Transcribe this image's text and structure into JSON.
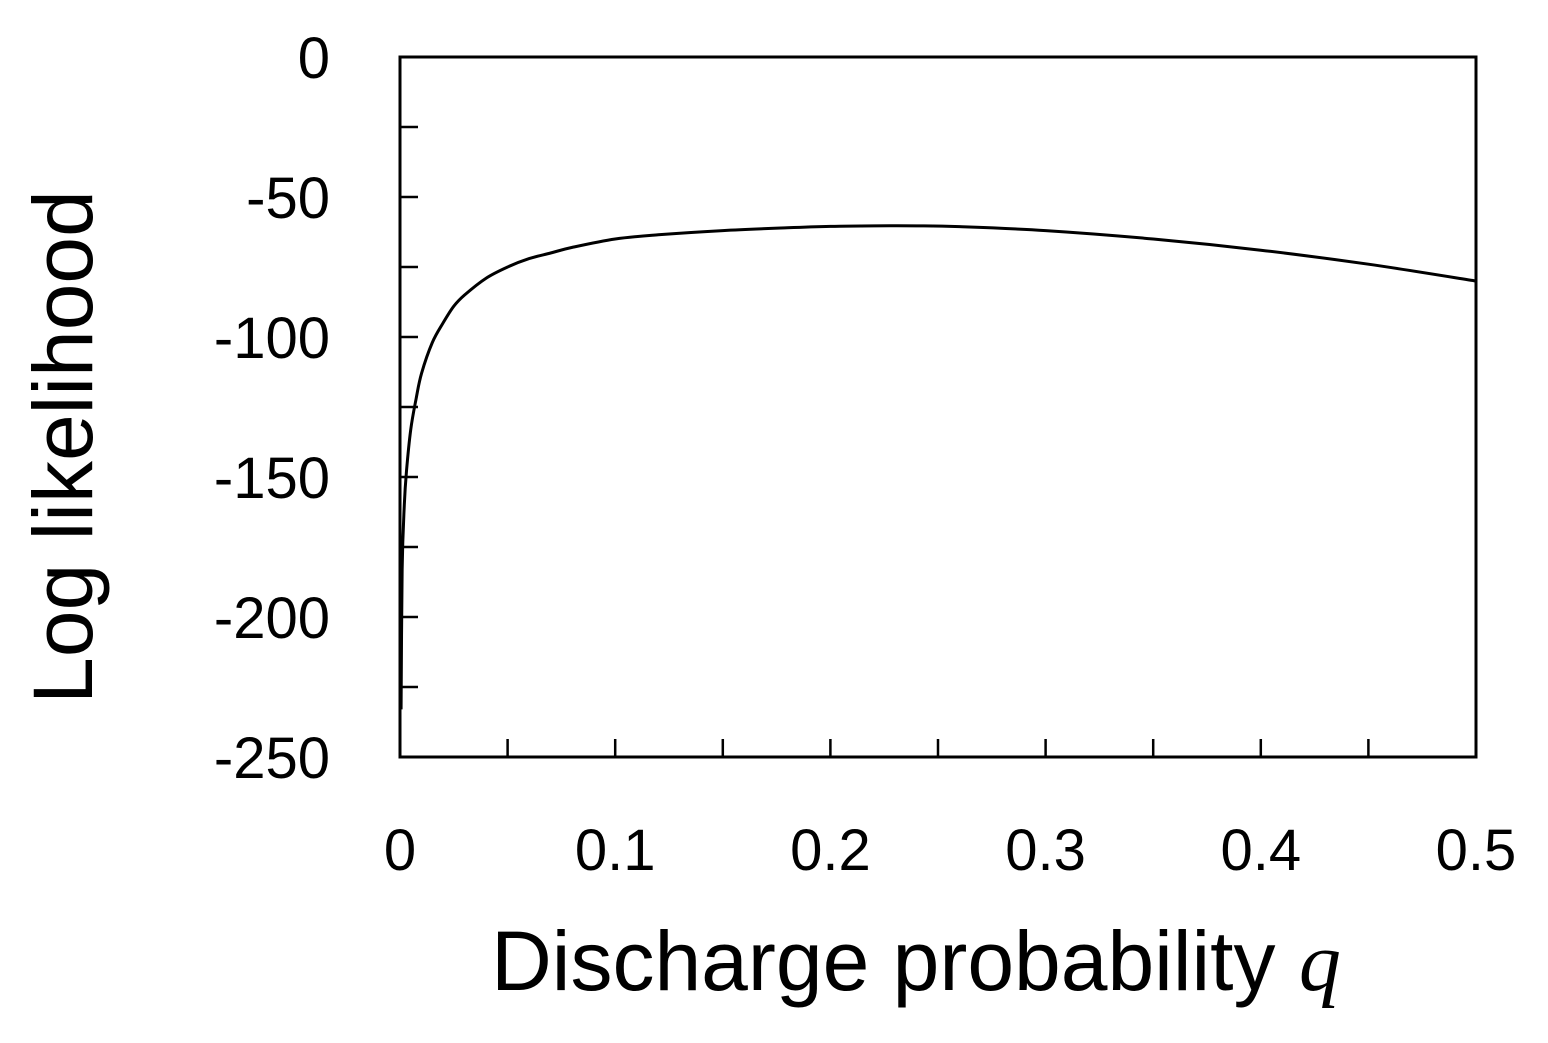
{
  "chart_data": {
    "type": "line",
    "xlabel": "Discharge probability",
    "xlabel_symbol": "q",
    "ylabel": "Log likelihood",
    "xlim": [
      0,
      0.5
    ],
    "ylim": [
      -250,
      0
    ],
    "xticks": [
      0,
      0.1,
      0.2,
      0.3,
      0.4,
      0.5
    ],
    "xtick_labels": [
      "0",
      "0.1",
      "0.2",
      "0.3",
      "0.4",
      "0.5"
    ],
    "xminor_ticks": [
      0.05,
      0.15,
      0.25,
      0.35,
      0.45
    ],
    "yticks": [
      0,
      -50,
      -100,
      -150,
      -200,
      -250
    ],
    "ytick_labels": [
      "0",
      "-50",
      "-100",
      "-150",
      "-200",
      "-250"
    ],
    "yminor_ticks": [
      -25,
      -75,
      -125,
      -175,
      -225
    ],
    "grid": false,
    "series": [
      {
        "color": "#000000",
        "x": [
          0.0005,
          0.001,
          0.002,
          0.003,
          0.005,
          0.0075,
          0.01,
          0.015,
          0.02,
          0.025,
          0.03,
          0.04,
          0.05,
          0.06,
          0.07,
          0.08,
          0.1,
          0.12,
          0.15,
          0.18,
          0.2,
          0.22,
          0.24,
          0.26,
          0.3,
          0.35,
          0.4,
          0.45,
          0.5
        ],
        "y": [
          -233,
          -183,
          -160,
          -148,
          -133,
          -122,
          -113,
          -102,
          -95,
          -89,
          -85,
          -79,
          -75,
          -72,
          -70,
          -68,
          -65,
          -63.5,
          -62,
          -61,
          -60.5,
          -60.3,
          -60.3,
          -60.6,
          -62,
          -65,
          -69,
          -74,
          -80
        ]
      }
    ]
  }
}
